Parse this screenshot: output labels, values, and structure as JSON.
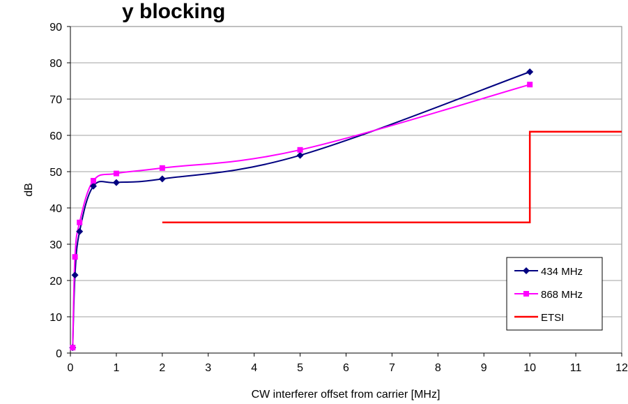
{
  "chart_data": {
    "type": "line",
    "title": "y blocking",
    "xlabel": "CW interferer offset from carrier [MHz]",
    "ylabel": "dB",
    "xlim": [
      0,
      12
    ],
    "ylim": [
      0,
      90
    ],
    "x_ticks": [
      0,
      1,
      2,
      3,
      4,
      5,
      6,
      7,
      8,
      9,
      10,
      11,
      12
    ],
    "y_ticks": [
      0,
      10,
      20,
      30,
      40,
      50,
      60,
      70,
      80,
      90
    ],
    "grid": true,
    "legend_position": "bottom-right",
    "series": [
      {
        "name": "434 MHz",
        "color": "#000080",
        "marker": "diamond",
        "smooth": true,
        "x": [
          0.05,
          0.1,
          0.2,
          0.5,
          1,
          2,
          5,
          10
        ],
        "y": [
          1.5,
          21.5,
          33.5,
          46,
          47,
          48,
          54.5,
          77.5
        ]
      },
      {
        "name": "868 MHz",
        "color": "#ff00ff",
        "marker": "square",
        "smooth": true,
        "x": [
          0.05,
          0.1,
          0.2,
          0.5,
          1,
          2,
          5,
          10
        ],
        "y": [
          1.5,
          26.5,
          36,
          47.5,
          49.5,
          51,
          56,
          74
        ]
      },
      {
        "name": "ETSI",
        "color": "#ff0000",
        "marker": "none",
        "smooth": false,
        "x": [
          2,
          10,
          10,
          12
        ],
        "y": [
          36,
          36,
          61,
          61
        ]
      }
    ]
  }
}
